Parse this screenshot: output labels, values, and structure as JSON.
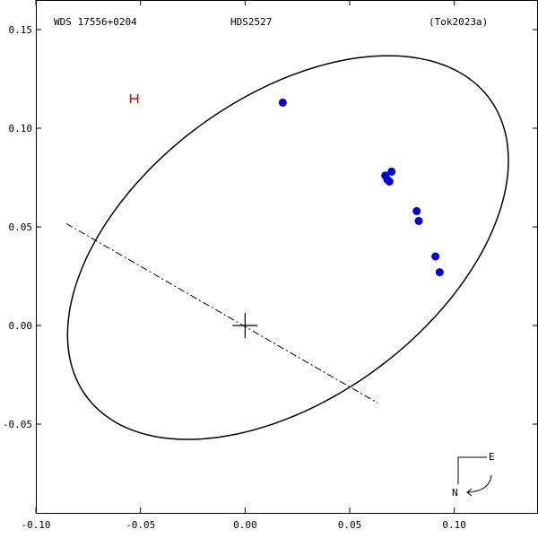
{
  "header": {
    "left": "WDS 17556+0204",
    "center": "HDS2527",
    "right": "(Tok2023a)"
  },
  "compass": {
    "east": "E",
    "north": "N"
  },
  "colors": {
    "observations": "#0000dd",
    "historic_marker": "#dd0000",
    "orbit": "#000000"
  },
  "chart_data": {
    "type": "scatter",
    "xlim": [
      -0.1,
      0.14
    ],
    "ylim": [
      -0.095,
      0.165
    ],
    "x_ticks": [
      {
        "value": -0.1,
        "label": "-0.10"
      },
      {
        "value": -0.05,
        "label": "-0.05"
      },
      {
        "value": 0.0,
        "label": "0.00"
      },
      {
        "value": 0.05,
        "label": "0.05"
      },
      {
        "value": 0.1,
        "label": "0.10"
      }
    ],
    "y_ticks": [
      {
        "value": 0.15,
        "label": "0.15"
      },
      {
        "value": 0.1,
        "label": "0.10"
      },
      {
        "value": 0.05,
        "label": "0.05"
      },
      {
        "value": 0.0,
        "label": "0.00"
      },
      {
        "value": -0.05,
        "label": "-0.05"
      }
    ],
    "orbit": {
      "center": [
        0.0205,
        0.0395
      ],
      "semi_major": 0.1225,
      "semi_minor": 0.0745,
      "angle_deg": 40
    },
    "line_of_nodes": [
      [
        -0.0855,
        0.0517
      ],
      [
        0.0634,
        -0.0393
      ]
    ],
    "primary": [
      0.0,
      0.0
    ],
    "observations": [
      [
        0.018,
        0.113
      ],
      [
        0.067,
        0.076
      ],
      [
        0.068,
        0.074
      ],
      [
        0.069,
        0.073
      ],
      [
        0.07,
        0.078
      ],
      [
        0.082,
        0.058
      ],
      [
        0.083,
        0.053
      ],
      [
        0.091,
        0.035
      ],
      [
        0.093,
        0.027
      ]
    ],
    "historic": [
      [
        -0.053,
        0.115
      ]
    ]
  }
}
